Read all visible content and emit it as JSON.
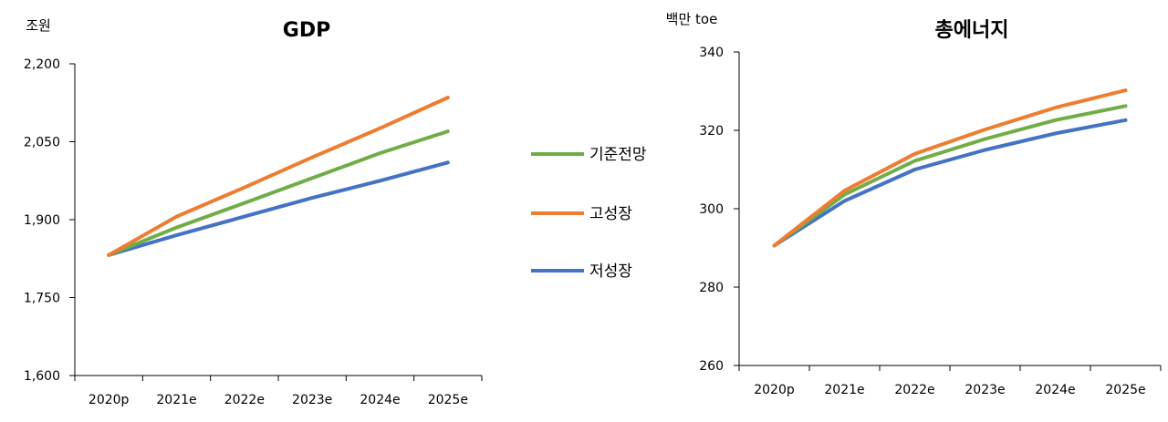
{
  "legend": [
    {
      "name": "기준전망",
      "color": "#70ad47"
    },
    {
      "name": "고성장",
      "color": "#ed7d31"
    },
    {
      "name": "저성장",
      "color": "#4472c4"
    }
  ],
  "chart_data": [
    {
      "type": "line",
      "title": "GDP",
      "unit_label": "조원",
      "categories": [
        "2020p",
        "2021e",
        "2022e",
        "2023e",
        "2024e",
        "2025e"
      ],
      "yticks": [
        "1,600",
        "1,750",
        "1,900",
        "2,050",
        "2,200"
      ],
      "ylim": [
        1600,
        2200
      ],
      "grid": false,
      "legend_position": "right",
      "series": [
        {
          "name": "기준전망",
          "color": "#70ad47",
          "values": [
            1832,
            1885,
            1932,
            1980,
            2028,
            2070
          ]
        },
        {
          "name": "고성장",
          "color": "#ed7d31",
          "values": [
            1832,
            1906,
            1962,
            2020,
            2076,
            2135
          ]
        },
        {
          "name": "저성장",
          "color": "#4472c4",
          "values": [
            1832,
            1870,
            1906,
            1942,
            1975,
            2010
          ]
        }
      ]
    },
    {
      "type": "line",
      "title": "총에너지",
      "unit_label": "백만 toe",
      "categories": [
        "2020p",
        "2021e",
        "2022e",
        "2023e",
        "2024e",
        "2025e"
      ],
      "yticks": [
        "260",
        "280",
        "300",
        "320",
        "340"
      ],
      "ylim": [
        260,
        340
      ],
      "grid": false,
      "legend_position": "none",
      "series": [
        {
          "name": "기준전망",
          "color": "#70ad47",
          "values": [
            290.6,
            303.6,
            312.2,
            317.8,
            322.6,
            326.2
          ]
        },
        {
          "name": "고성장",
          "color": "#ed7d31",
          "values": [
            290.6,
            304.6,
            314.0,
            320.2,
            325.8,
            330.2
          ]
        },
        {
          "name": "저성장",
          "color": "#4472c4",
          "values": [
            290.6,
            302.0,
            310.0,
            315.0,
            319.2,
            322.6
          ]
        }
      ]
    }
  ]
}
